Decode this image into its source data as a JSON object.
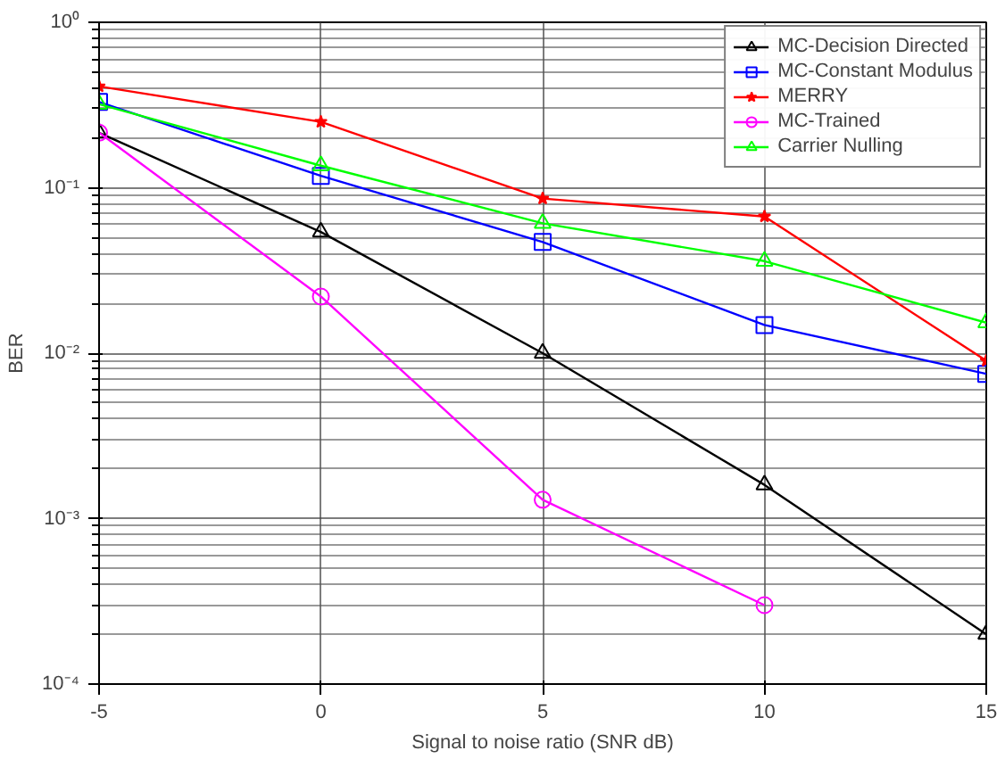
{
  "chart_data": {
    "type": "line",
    "xlabel": "Signal to noise ratio (SNR dB)",
    "ylabel": "BER",
    "x": [
      -5,
      0,
      5,
      10,
      15
    ],
    "series": [
      {
        "name": "MC-Decision Directed",
        "color": "#000000",
        "marker": "triangle",
        "values": [
          0.215,
          0.054,
          0.01,
          0.0016,
          0.0002
        ]
      },
      {
        "name": "MC-Constant Modulus",
        "color": "#0000ff",
        "marker": "square",
        "values": [
          0.33,
          0.118,
          0.047,
          0.0148,
          0.0075
        ]
      },
      {
        "name": "MERRY",
        "color": "#ff0000",
        "marker": "star",
        "values": [
          0.41,
          0.25,
          0.086,
          0.067,
          0.009
        ]
      },
      {
        "name": "MC-Trained",
        "color": "#ff00ff",
        "marker": "circle",
        "values": [
          0.215,
          0.022,
          0.0013,
          0.0003,
          null
        ]
      },
      {
        "name": "Carrier Nulling",
        "color": "#00ff00",
        "marker": "triangle",
        "values": [
          0.32,
          0.136,
          0.061,
          0.036,
          0.0153
        ]
      }
    ],
    "log": "y",
    "xlim": [
      -5,
      15
    ],
    "ylim": [
      0.0001,
      1
    ],
    "xticks": [
      -5,
      0,
      5,
      10,
      15
    ],
    "yticks": [
      {
        "value": 0.0001,
        "label": "10⁻⁴"
      },
      {
        "value": 0.001,
        "label": "10⁻³"
      },
      {
        "value": 0.01,
        "label": "10⁻²"
      },
      {
        "value": 0.1,
        "label": "10⁻¹"
      },
      {
        "value": 1,
        "label": "10⁰"
      }
    ],
    "grid": true,
    "legend": "top right",
    "line_style": "solid"
  }
}
